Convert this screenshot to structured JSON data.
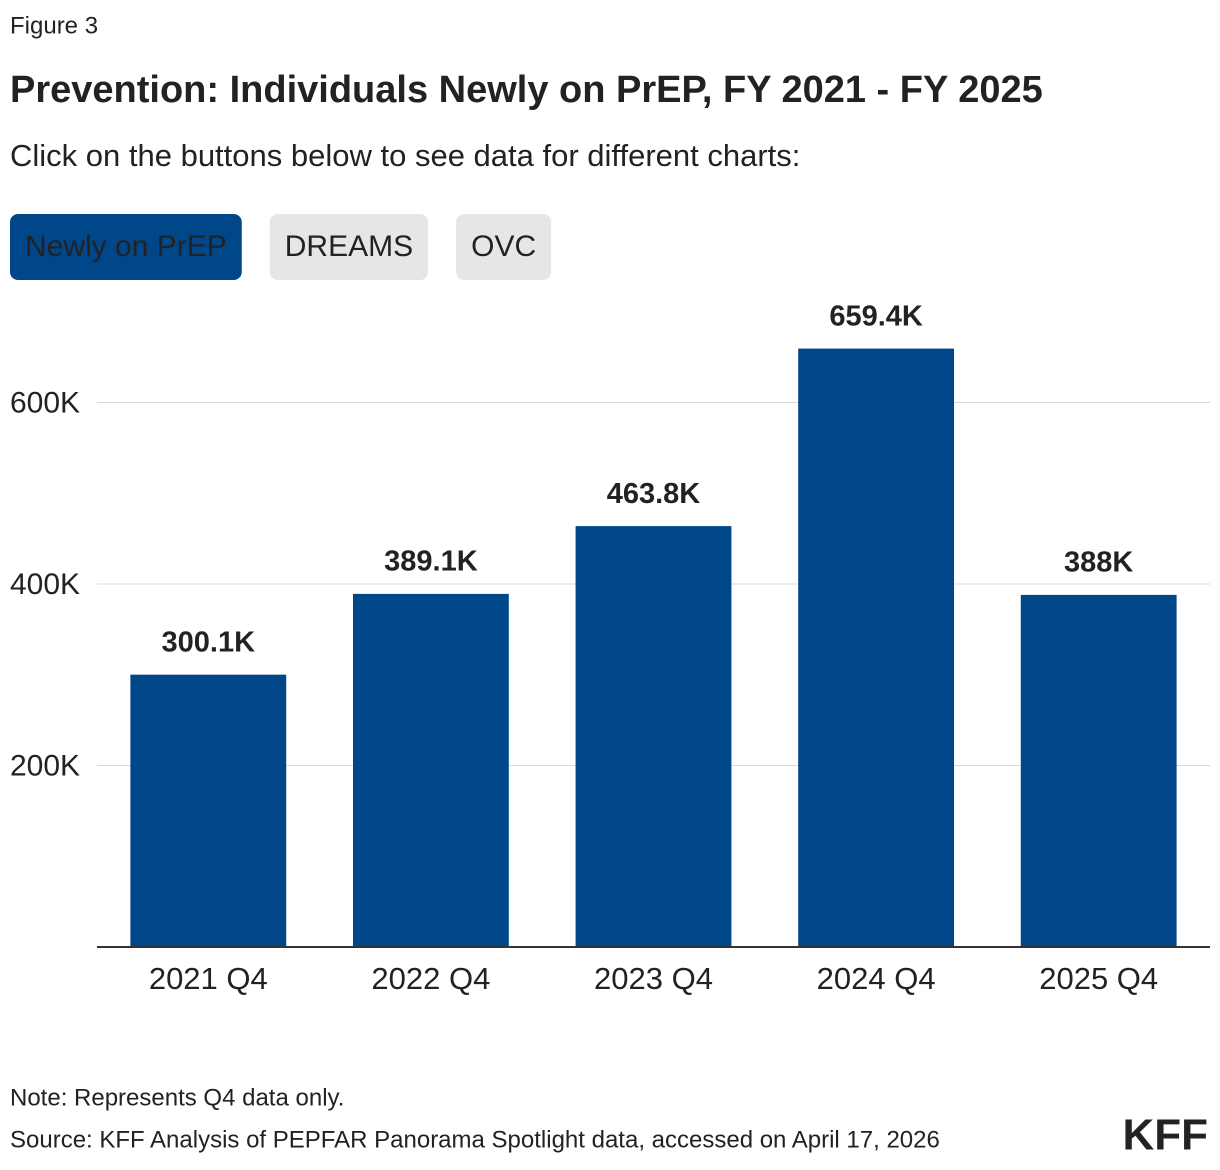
{
  "figure_label": "Figure 3",
  "subtitle": "Click on the buttons below to see data for different charts:",
  "buttons": [
    "Newly on PrEP",
    "DREAMS",
    "OVC"
  ],
  "note": "Note: Represents Q4 data only.",
  "source": "Source: KFF Analysis of PEPFAR Panorama Spotlight data, accessed on April 17, 2026",
  "logo": "KFF",
  "chart_data": {
    "type": "bar",
    "title": "Prevention: Individuals Newly on PrEP, FY 2021 - FY 2025",
    "categories": [
      "2021 Q4",
      "2022 Q4",
      "2023 Q4",
      "2024 Q4",
      "2025 Q4"
    ],
    "values": [
      300100,
      389100,
      463800,
      659400,
      388000
    ],
    "value_labels": [
      "300.1K",
      "389.1K",
      "463.8K",
      "659.4K",
      "388K"
    ],
    "color": "#00478a",
    "ylim": [
      0,
      700000
    ],
    "yticks": [
      {
        "value": 200000,
        "label": "200K"
      },
      {
        "value": 400000,
        "label": "400K"
      },
      {
        "value": 600000,
        "label": "600K"
      }
    ],
    "grid": true
  }
}
